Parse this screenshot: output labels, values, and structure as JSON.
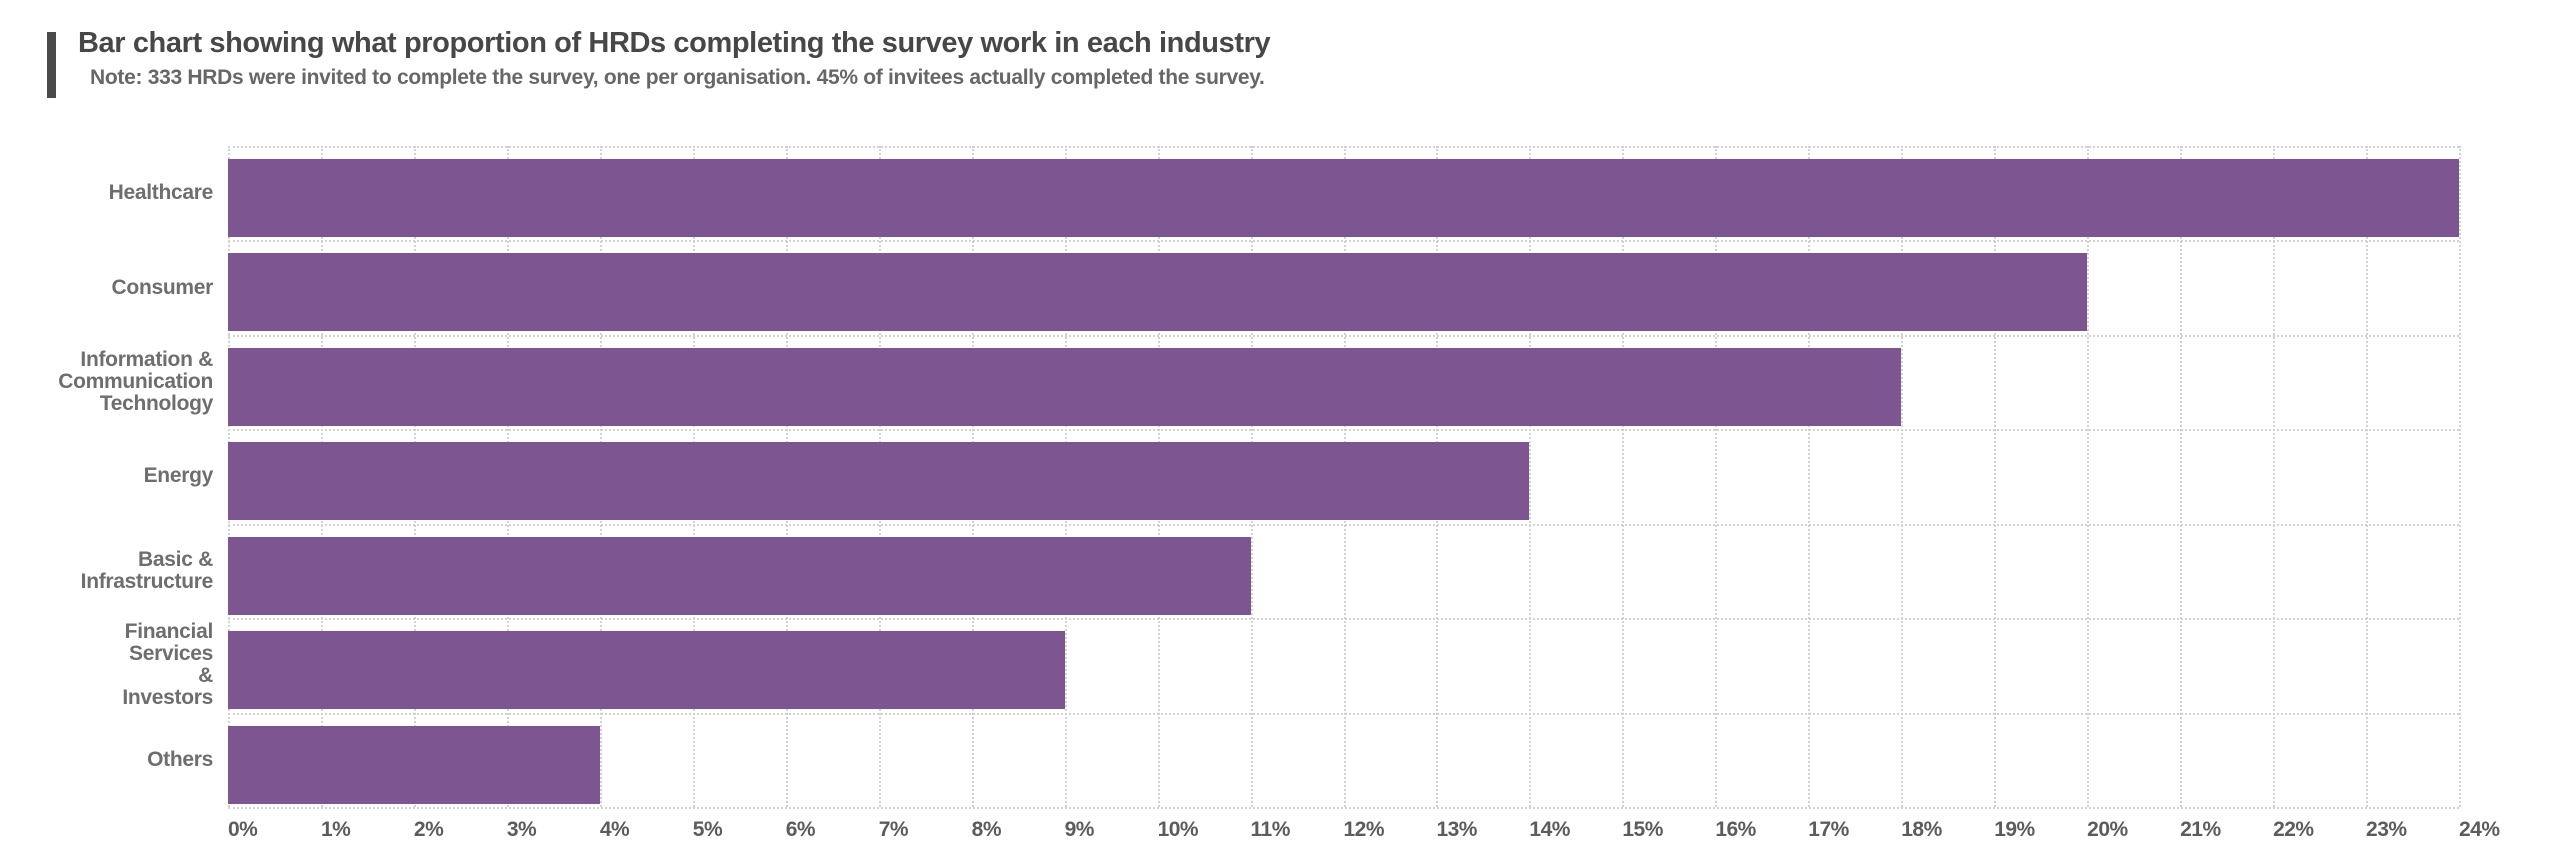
{
  "header": {
    "title": "Bar chart showing what proportion of HRDs completing the survey work in each industry",
    "note": "Note: 333 HRDs were invited to complete the survey, one per organisation. 45% of invitees actually completed the survey."
  },
  "chart_data": {
    "type": "bar",
    "orientation": "horizontal",
    "title": "Bar chart showing what proportion of HRDs completing the survey work in each industry",
    "subtitle": "Note: 333 HRDs were invited to complete the survey, one per organisation. 45% of invitees actually completed the survey.",
    "categories": [
      "Healthcare",
      "Consumer",
      "Information & Communication Technology",
      "Energy",
      "Basic & Infrastructure",
      "Financial Services & Investors",
      "Others"
    ],
    "category_label_lines": [
      [
        "Healthcare"
      ],
      [
        "Consumer"
      ],
      [
        "Information &",
        "Communication",
        "Technology"
      ],
      [
        "Energy"
      ],
      [
        "Basic &",
        "Infrastructure"
      ],
      [
        "Financial",
        "Services",
        "&",
        "Investors"
      ],
      [
        "Others"
      ]
    ],
    "values": [
      24,
      20,
      18,
      14,
      11,
      9,
      4
    ],
    "unit": "%",
    "xlabel": "",
    "ylabel": "",
    "xlim": [
      0,
      24
    ],
    "xtick_step": 1,
    "xtick_labels": [
      "0%",
      "1%",
      "2%",
      "3%",
      "4%",
      "5%",
      "6%",
      "7%",
      "8%",
      "9%",
      "10%",
      "11%",
      "12%",
      "13%",
      "14%",
      "15%",
      "16%",
      "17%",
      "18%",
      "19%",
      "20%",
      "21%",
      "22%",
      "23%",
      "24%"
    ],
    "grid": "dotted",
    "legend": "none"
  },
  "colors": {
    "bar": "#7d5590",
    "accent_bar": "#4a4a4a",
    "title_text": "#474747",
    "note_text": "#676767",
    "label_text": "#6e6e6e",
    "tick_text": "#5c5c5c",
    "gridline": "#d2d2d2",
    "background": "#ffffff"
  }
}
